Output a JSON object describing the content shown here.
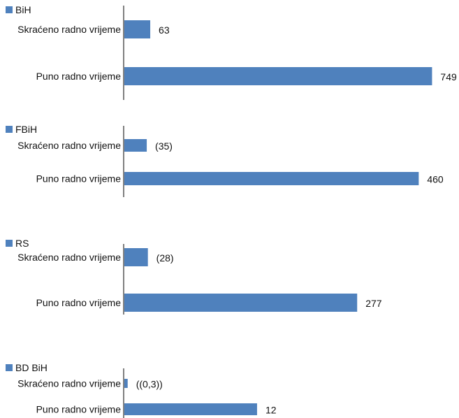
{
  "colors": {
    "bar": "#4f81bd",
    "axis": "#7f7f7f",
    "text": "#111111"
  },
  "chart_data": [
    {
      "type": "bar",
      "orientation": "horizontal",
      "legend": "BiH",
      "legend_position": "top-left",
      "categories": [
        "Skraćeno radno vrijeme",
        "Puno radno vrijeme"
      ],
      "values": [
        63,
        749
      ],
      "data_labels": [
        "63",
        "749"
      ]
    },
    {
      "type": "bar",
      "orientation": "horizontal",
      "legend": "FBiH",
      "legend_position": "top-left",
      "categories": [
        "Skraćeno radno vrijeme",
        "Puno radno vrijeme"
      ],
      "values": [
        35,
        460
      ],
      "data_labels": [
        "(35)",
        "460"
      ]
    },
    {
      "type": "bar",
      "orientation": "horizontal",
      "legend": "RS",
      "legend_position": "top-left",
      "categories": [
        "Skraćeno radno vrijeme",
        "Puno radno vrijeme"
      ],
      "values": [
        28,
        277
      ],
      "data_labels": [
        "(28)",
        "277"
      ]
    },
    {
      "type": "bar",
      "orientation": "horizontal",
      "legend": "BD BiH",
      "legend_position": "top-left",
      "categories": [
        "Skraćeno radno vrijeme",
        "Puno radno vrijeme"
      ],
      "values": [
        0.3,
        12
      ],
      "data_labels": [
        "((0,3))",
        "12"
      ]
    }
  ]
}
